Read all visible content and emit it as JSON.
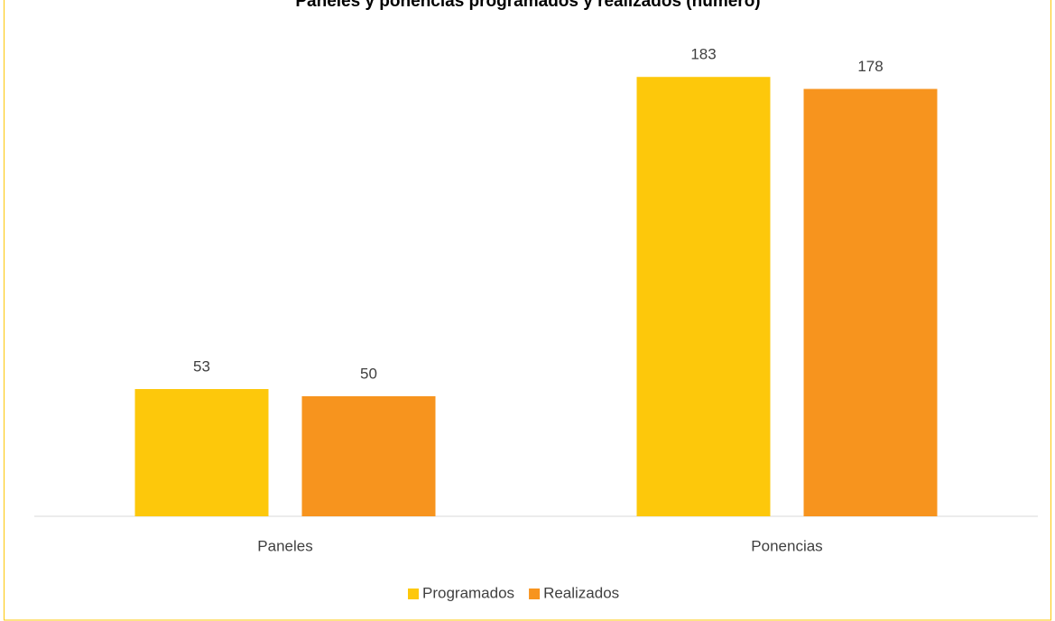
{
  "chart_data": {
    "type": "bar",
    "title": "Paneles y ponencias programados y realizados (número)",
    "categories": [
      "Paneles",
      "Ponencias"
    ],
    "series": [
      {
        "name": "Programados",
        "color": "#fdc80b",
        "values": [
          53,
          183
        ]
      },
      {
        "name": "Realizados",
        "color": "#f7941e",
        "values": [
          50,
          178
        ]
      }
    ],
    "ylim": [
      0,
      200
    ],
    "legend": "bottom"
  }
}
